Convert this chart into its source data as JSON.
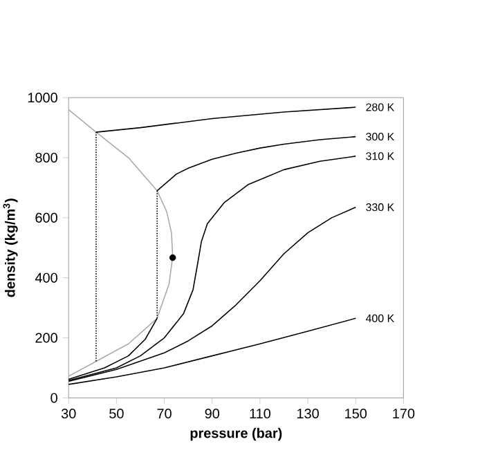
{
  "chart_data": {
    "type": "line",
    "xlabel": "pressure (bar)",
    "ylabel": "density (kg/m$^{3}$)",
    "xlim": [
      30,
      170
    ],
    "ylim": [
      0,
      1000
    ],
    "xticks": [
      30,
      50,
      70,
      90,
      110,
      130,
      150,
      170
    ],
    "yticks": [
      0,
      200,
      400,
      600,
      800,
      1000
    ],
    "legend": false,
    "grid": false,
    "marker": "none",
    "line_style": "solid",
    "series": [
      {
        "color": "#aaaaaa",
        "x": [
          30,
          41.5,
          55,
          67,
          71,
          73,
          73.5,
          72,
          67,
          55,
          41.5,
          30
        ],
        "values": [
          960,
          885,
          800,
          690,
          620,
          550,
          470,
          380,
          265,
          180,
          122,
          72
        ]
      },
      {
        "name": "280 K",
        "color": "#000000",
        "x": [
          41.5,
          60,
          90,
          120,
          150
        ],
        "values": [
          885,
          900,
          930,
          952,
          968
        ]
      },
      {
        "name": "300 K",
        "color": "#000000",
        "x": [
          67,
          75,
          80,
          90,
          100,
          110,
          120,
          135,
          150
        ],
        "values": [
          690,
          745,
          765,
          795,
          815,
          832,
          845,
          860,
          870
        ]
      },
      {
        "name": "310 K",
        "color": "#000000",
        "x": [
          30,
          50,
          60,
          70,
          78,
          82,
          84,
          85.5,
          88,
          95,
          105,
          120,
          135,
          150
        ],
        "values": [
          58,
          100,
          140,
          200,
          280,
          360,
          450,
          520,
          580,
          650,
          710,
          760,
          788,
          805
        ]
      },
      {
        "name": "330 K",
        "color": "#000000",
        "x": [
          30,
          50,
          70,
          80,
          90,
          100,
          110,
          120,
          130,
          140,
          150
        ],
        "values": [
          55,
          95,
          150,
          190,
          240,
          310,
          390,
          480,
          550,
          600,
          635
        ]
      },
      {
        "name": "400 K",
        "color": "#000000",
        "x": [
          30,
          50,
          70,
          90,
          110,
          130,
          150
        ],
        "values": [
          45,
          70,
          100,
          140,
          180,
          222,
          265
        ]
      },
      {
        "color": "#000000",
        "x": [
          30,
          45,
          55,
          62,
          67
        ],
        "values": [
          62,
          100,
          140,
          195,
          265
        ]
      },
      {
        "color": "#000000",
        "line_style": "dotted",
        "x": [
          41.5,
          41.5
        ],
        "values": [
          122,
          885
        ]
      },
      {
        "color": "#000000",
        "line_style": "dotted",
        "x": [
          67,
          67
        ],
        "values": [
          265,
          690
        ]
      },
      {
        "type": "scatter",
        "marker": "circle",
        "color": "#000000",
        "x": [
          73.5
        ],
        "values": [
          467
        ]
      }
    ]
  }
}
